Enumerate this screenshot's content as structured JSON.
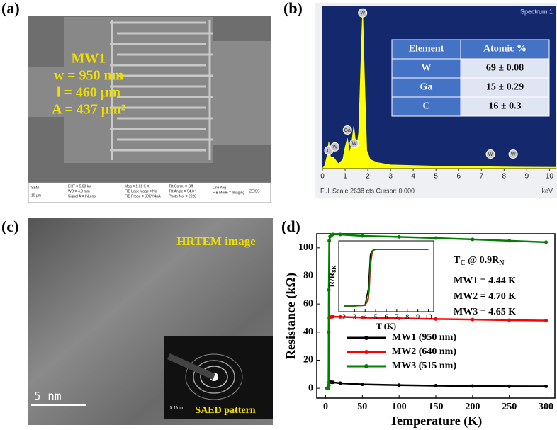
{
  "panels": [
    "(a)",
    "(b)",
    "(c)",
    "(d)"
  ],
  "sem": {
    "sample": "MW1",
    "width": "w = 950 nm",
    "length": "l = 460 µm",
    "area": "A = 437 µm²",
    "info": [
      "SEM",
      "10 µm",
      "EHT = 5.00 kV",
      "WD = 4.9 mm",
      "Signal A = InLens",
      "Mag = 1.61 K X",
      "FIB Lock Mags = No",
      "FIB Probe = 30KV:4nA",
      "Tilt Corrn. = Off",
      "Tilt Angle = 54.0 °",
      "Photo No. = 2920",
      "Line Avg",
      "FIB Mode = Imaging",
      "ZEISS"
    ]
  },
  "eds_table": {
    "header": [
      "Element",
      "Atomic %"
    ],
    "rows": [
      [
        "W",
        "69 ± 0.08"
      ],
      [
        "Ga",
        "15 ± 0.29"
      ],
      [
        "C",
        "16 ± 0.3"
      ]
    ]
  },
  "hrtem": {
    "title": "HRTEM image",
    "scale": "5 nm",
    "inset_label": "SAED pattern",
    "inset_scale": "5 1/nm"
  },
  "chart_data": [
    {
      "type": "area",
      "title": "Spectrum 1",
      "footer": "Full Scale 2638 cts Cursor: 0.000",
      "x_label": "keV",
      "color": "#ffff00",
      "x": [
        0,
        0.1,
        0.2,
        0.28,
        0.35,
        0.5,
        0.7,
        0.9,
        1.0,
        1.1,
        1.2,
        1.3,
        1.38,
        1.5,
        1.6,
        1.7,
        1.77,
        1.85,
        1.95,
        2.1,
        2.4,
        3,
        5,
        7.4,
        8.4,
        10.3
      ],
      "values": [
        0,
        50,
        200,
        440,
        200,
        180,
        80,
        150,
        350,
        500,
        250,
        450,
        700,
        300,
        600,
        1800,
        2600,
        1500,
        300,
        150,
        100,
        60,
        40,
        30,
        25,
        20
      ],
      "xlim": [
        0,
        10.3
      ],
      "ylim": [
        0,
        2700
      ],
      "xticks": [
        0,
        1,
        2,
        3,
        4,
        5,
        6,
        7,
        8,
        9,
        10
      ],
      "peak_labels": [
        {
          "label": "W",
          "x": 1.77,
          "y": 2580
        },
        {
          "label": "C",
          "x": 0.28,
          "y": 300
        },
        {
          "label": "W",
          "x": 0.55,
          "y": 360
        },
        {
          "label": "Ga",
          "x": 1.1,
          "y": 640
        },
        {
          "label": "W",
          "x": 1.4,
          "y": 420
        },
        {
          "label": "W",
          "x": 7.4,
          "y": 240
        },
        {
          "label": "W",
          "x": 8.4,
          "y": 240
        }
      ]
    },
    {
      "type": "line",
      "x_label": "Temperature (K)",
      "y_label": "Resistance (kΩ)",
      "x": [
        2,
        3,
        4,
        4.4,
        5,
        6,
        8,
        10,
        20,
        50,
        100,
        150,
        200,
        250,
        300
      ],
      "series": [
        {
          "name": "MW1 (950 nm)",
          "color": "#000000",
          "values": [
            0,
            0,
            0.2,
            2,
            4.2,
            4.4,
            4.3,
            4.2,
            3.6,
            2.8,
            2.2,
            1.8,
            1.6,
            1.4,
            1.3
          ]
        },
        {
          "name": "MW2 (640 nm)",
          "color": "#ff0000",
          "values": [
            0,
            0,
            0.5,
            40,
            50,
            50.5,
            50.8,
            51,
            50.8,
            50.3,
            49.8,
            49.3,
            48.9,
            48.5,
            48.2
          ]
        },
        {
          "name": "MW3 (515 nm)",
          "color": "#008000",
          "values": [
            0,
            0,
            2,
            70,
            105,
            108,
            109,
            109.5,
            109.5,
            108.5,
            107.8,
            107,
            106,
            105,
            104
          ]
        }
      ],
      "xlim": [
        -12,
        312
      ],
      "ylim": [
        -7,
        110
      ],
      "xticks": [
        0,
        50,
        100,
        150,
        200,
        250,
        300
      ],
      "yticks": [
        0,
        20,
        40,
        60,
        80,
        100
      ],
      "legend": "center right",
      "annotation": {
        "tc": [
          "T",
          "C",
          " @ 0.9R",
          "N"
        ],
        "lines": [
          "MW1 = 4.44 K",
          "MW2 = 4.70 K",
          "MW3 = 4.65 K"
        ]
      }
    },
    {
      "type": "line",
      "x_label": "T (K)",
      "y_label": [
        "R/R",
        "8K"
      ],
      "x": [
        2,
        3,
        4,
        4.3,
        4.4,
        4.5,
        4.7,
        5,
        6,
        8,
        10
      ],
      "series": [
        {
          "color": "#000000",
          "values": [
            0,
            0,
            0.02,
            0.3,
            0.6,
            0.92,
            0.98,
            1,
            1,
            1,
            1
          ]
        },
        {
          "color": "#ff0000",
          "values": [
            0,
            0,
            0.01,
            0.1,
            0.3,
            0.7,
            0.97,
            1,
            1,
            1,
            1
          ]
        },
        {
          "color": "#008000",
          "values": [
            0,
            0,
            0.01,
            0.15,
            0.4,
            0.8,
            0.98,
            1,
            1,
            1,
            1
          ]
        }
      ],
      "xlim": [
        1.5,
        10.5
      ],
      "ylim": [
        -0.1,
        1.15
      ],
      "xticks": [
        2,
        3,
        4,
        5,
        6,
        7,
        8,
        9,
        10
      ]
    }
  ]
}
